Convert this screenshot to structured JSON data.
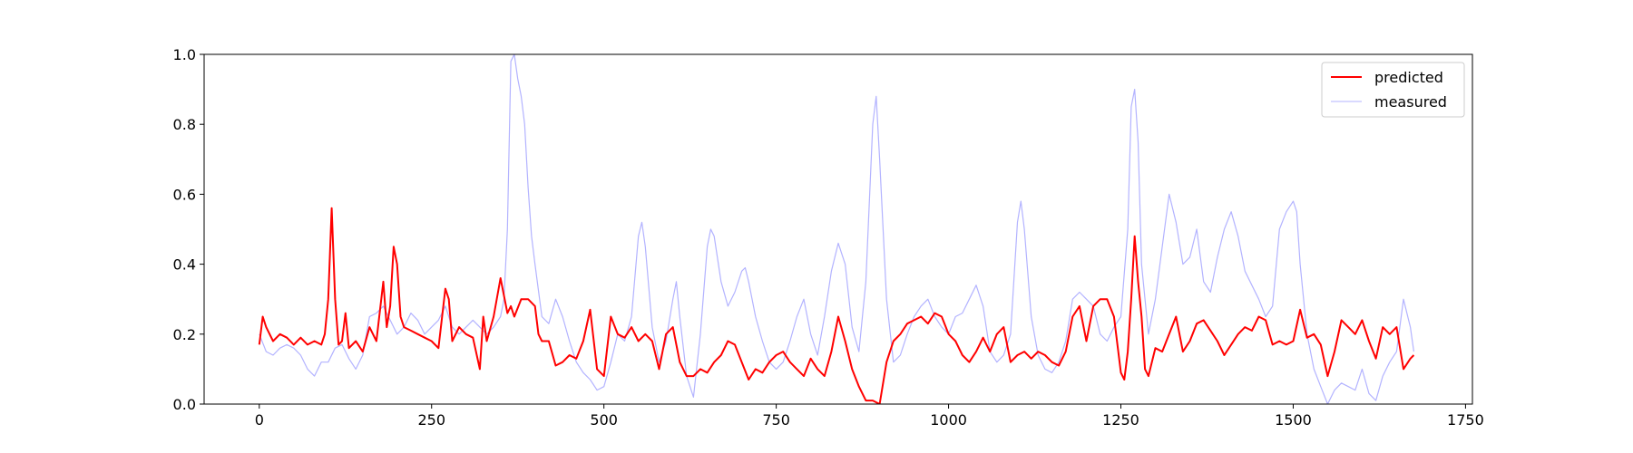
{
  "colors": {
    "predicted": "#ff0000",
    "measured": "#b3b3ff",
    "axis": "#000000",
    "legend_border": "#cccccc"
  },
  "chart_data": {
    "type": "line",
    "title": "",
    "xlabel": "",
    "ylabel": "",
    "xlim": [
      -80,
      1760
    ],
    "ylim": [
      0.0,
      1.0
    ],
    "xticks": [
      0,
      250,
      500,
      750,
      1000,
      1250,
      1500,
      1750
    ],
    "xtick_labels": [
      "0",
      "250",
      "500",
      "750",
      "1000",
      "1250",
      "1500",
      "1750"
    ],
    "yticks": [
      0.0,
      0.2,
      0.4,
      0.6,
      0.8,
      1.0
    ],
    "ytick_labels": [
      "0.0",
      "0.2",
      "0.4",
      "0.6",
      "0.8",
      "1.0"
    ],
    "grid": false,
    "legend_position": "top-right",
    "series": [
      {
        "name": "predicted",
        "color": "#ff0000",
        "x": [
          0,
          5,
          10,
          20,
          30,
          40,
          50,
          60,
          70,
          80,
          90,
          95,
          100,
          105,
          110,
          115,
          120,
          125,
          130,
          140,
          150,
          160,
          170,
          180,
          185,
          190,
          195,
          200,
          205,
          210,
          220,
          230,
          240,
          250,
          260,
          270,
          275,
          280,
          290,
          300,
          310,
          320,
          325,
          330,
          340,
          350,
          360,
          365,
          370,
          380,
          390,
          400,
          405,
          410,
          420,
          430,
          440,
          450,
          460,
          470,
          480,
          490,
          500,
          510,
          520,
          530,
          540,
          550,
          560,
          570,
          580,
          590,
          600,
          610,
          620,
          630,
          640,
          650,
          660,
          670,
          680,
          690,
          700,
          710,
          720,
          730,
          740,
          750,
          760,
          770,
          780,
          790,
          800,
          810,
          820,
          830,
          840,
          850,
          860,
          870,
          880,
          890,
          900,
          910,
          920,
          930,
          940,
          950,
          960,
          970,
          980,
          990,
          1000,
          1010,
          1020,
          1030,
          1040,
          1050,
          1060,
          1070,
          1080,
          1090,
          1100,
          1110,
          1120,
          1130,
          1140,
          1150,
          1160,
          1170,
          1180,
          1190,
          1200,
          1210,
          1220,
          1230,
          1240,
          1250,
          1255,
          1260,
          1265,
          1270,
          1275,
          1280,
          1285,
          1290,
          1300,
          1310,
          1320,
          1330,
          1340,
          1350,
          1360,
          1370,
          1380,
          1390,
          1400,
          1410,
          1420,
          1430,
          1440,
          1450,
          1460,
          1470,
          1480,
          1490,
          1500,
          1510,
          1520,
          1530,
          1540,
          1550,
          1560,
          1570,
          1580,
          1590,
          1600,
          1610,
          1620,
          1630,
          1640,
          1650,
          1660,
          1670,
          1675
        ],
        "y": [
          0.17,
          0.25,
          0.22,
          0.18,
          0.2,
          0.19,
          0.17,
          0.19,
          0.17,
          0.18,
          0.17,
          0.2,
          0.3,
          0.56,
          0.3,
          0.17,
          0.18,
          0.26,
          0.16,
          0.18,
          0.15,
          0.22,
          0.18,
          0.35,
          0.22,
          0.28,
          0.45,
          0.4,
          0.25,
          0.22,
          0.21,
          0.2,
          0.19,
          0.18,
          0.16,
          0.33,
          0.3,
          0.18,
          0.22,
          0.2,
          0.19,
          0.1,
          0.25,
          0.18,
          0.25,
          0.36,
          0.26,
          0.28,
          0.25,
          0.3,
          0.3,
          0.28,
          0.2,
          0.18,
          0.18,
          0.11,
          0.12,
          0.14,
          0.13,
          0.18,
          0.27,
          0.1,
          0.08,
          0.25,
          0.2,
          0.19,
          0.22,
          0.18,
          0.2,
          0.18,
          0.1,
          0.2,
          0.22,
          0.12,
          0.08,
          0.08,
          0.1,
          0.09,
          0.12,
          0.14,
          0.18,
          0.17,
          0.12,
          0.07,
          0.1,
          0.09,
          0.12,
          0.14,
          0.15,
          0.12,
          0.1,
          0.08,
          0.13,
          0.1,
          0.08,
          0.15,
          0.25,
          0.18,
          0.1,
          0.05,
          0.01,
          0.01,
          0.0,
          0.12,
          0.18,
          0.2,
          0.23,
          0.24,
          0.25,
          0.23,
          0.26,
          0.25,
          0.2,
          0.18,
          0.14,
          0.12,
          0.15,
          0.19,
          0.15,
          0.2,
          0.22,
          0.12,
          0.14,
          0.15,
          0.13,
          0.15,
          0.14,
          0.12,
          0.11,
          0.15,
          0.25,
          0.28,
          0.18,
          0.28,
          0.3,
          0.3,
          0.25,
          0.09,
          0.07,
          0.15,
          0.3,
          0.48,
          0.35,
          0.25,
          0.1,
          0.08,
          0.16,
          0.15,
          0.2,
          0.25,
          0.15,
          0.18,
          0.23,
          0.24,
          0.21,
          0.18,
          0.14,
          0.17,
          0.2,
          0.22,
          0.21,
          0.25,
          0.24,
          0.17,
          0.18,
          0.17,
          0.18,
          0.27,
          0.19,
          0.2,
          0.17,
          0.08,
          0.15,
          0.24,
          0.22,
          0.2,
          0.24,
          0.18,
          0.13,
          0.22,
          0.2,
          0.22,
          0.1,
          0.13,
          0.14
        ]
      },
      {
        "name": "measured",
        "color": "#b3b3ff",
        "x": [
          0,
          10,
          20,
          30,
          40,
          50,
          60,
          70,
          80,
          90,
          100,
          110,
          120,
          130,
          140,
          150,
          160,
          170,
          180,
          190,
          200,
          210,
          220,
          230,
          240,
          250,
          260,
          270,
          280,
          290,
          300,
          310,
          320,
          330,
          340,
          350,
          355,
          360,
          365,
          370,
          375,
          380,
          385,
          390,
          395,
          400,
          410,
          420,
          430,
          440,
          450,
          460,
          470,
          480,
          490,
          500,
          510,
          520,
          530,
          540,
          550,
          555,
          560,
          570,
          580,
          590,
          600,
          605,
          610,
          620,
          630,
          640,
          650,
          655,
          660,
          670,
          680,
          690,
          700,
          705,
          710,
          720,
          730,
          740,
          750,
          760,
          770,
          780,
          790,
          800,
          810,
          820,
          830,
          840,
          850,
          860,
          870,
          880,
          890,
          895,
          900,
          910,
          920,
          930,
          940,
          950,
          960,
          970,
          980,
          990,
          1000,
          1010,
          1020,
          1030,
          1040,
          1050,
          1060,
          1070,
          1080,
          1090,
          1100,
          1105,
          1110,
          1120,
          1130,
          1140,
          1150,
          1160,
          1170,
          1180,
          1190,
          1200,
          1210,
          1220,
          1230,
          1240,
          1250,
          1260,
          1265,
          1270,
          1275,
          1280,
          1290,
          1300,
          1310,
          1320,
          1330,
          1340,
          1350,
          1360,
          1370,
          1380,
          1390,
          1400,
          1410,
          1420,
          1430,
          1440,
          1450,
          1460,
          1470,
          1480,
          1490,
          1500,
          1505,
          1510,
          1520,
          1530,
          1540,
          1550,
          1560,
          1570,
          1580,
          1590,
          1600,
          1610,
          1620,
          1630,
          1640,
          1650,
          1660,
          1670,
          1675
        ],
        "y": [
          0.2,
          0.15,
          0.14,
          0.16,
          0.17,
          0.16,
          0.14,
          0.1,
          0.08,
          0.12,
          0.12,
          0.16,
          0.17,
          0.13,
          0.1,
          0.14,
          0.25,
          0.26,
          0.28,
          0.24,
          0.2,
          0.22,
          0.26,
          0.24,
          0.2,
          0.22,
          0.24,
          0.28,
          0.22,
          0.2,
          0.22,
          0.24,
          0.22,
          0.2,
          0.22,
          0.25,
          0.3,
          0.5,
          0.98,
          1.0,
          0.93,
          0.88,
          0.8,
          0.62,
          0.48,
          0.4,
          0.25,
          0.23,
          0.3,
          0.25,
          0.18,
          0.12,
          0.09,
          0.07,
          0.04,
          0.05,
          0.12,
          0.2,
          0.18,
          0.25,
          0.48,
          0.52,
          0.45,
          0.22,
          0.12,
          0.18,
          0.3,
          0.35,
          0.25,
          0.08,
          0.02,
          0.2,
          0.45,
          0.5,
          0.48,
          0.35,
          0.28,
          0.32,
          0.38,
          0.39,
          0.35,
          0.25,
          0.18,
          0.12,
          0.1,
          0.12,
          0.18,
          0.25,
          0.3,
          0.2,
          0.14,
          0.25,
          0.38,
          0.46,
          0.4,
          0.22,
          0.15,
          0.35,
          0.8,
          0.88,
          0.7,
          0.3,
          0.12,
          0.14,
          0.2,
          0.25,
          0.28,
          0.3,
          0.25,
          0.22,
          0.2,
          0.25,
          0.26,
          0.3,
          0.34,
          0.28,
          0.15,
          0.12,
          0.14,
          0.2,
          0.52,
          0.58,
          0.5,
          0.25,
          0.14,
          0.1,
          0.09,
          0.12,
          0.18,
          0.3,
          0.32,
          0.3,
          0.28,
          0.2,
          0.18,
          0.22,
          0.25,
          0.5,
          0.85,
          0.9,
          0.75,
          0.4,
          0.2,
          0.3,
          0.45,
          0.6,
          0.52,
          0.4,
          0.42,
          0.5,
          0.35,
          0.32,
          0.42,
          0.5,
          0.55,
          0.48,
          0.38,
          0.34,
          0.3,
          0.25,
          0.28,
          0.5,
          0.55,
          0.58,
          0.55,
          0.4,
          0.2,
          0.1,
          0.05,
          0.0,
          0.04,
          0.06,
          0.05,
          0.04,
          0.1,
          0.03,
          0.01,
          0.08,
          0.12,
          0.15,
          0.3,
          0.22,
          0.15
        ]
      }
    ]
  }
}
